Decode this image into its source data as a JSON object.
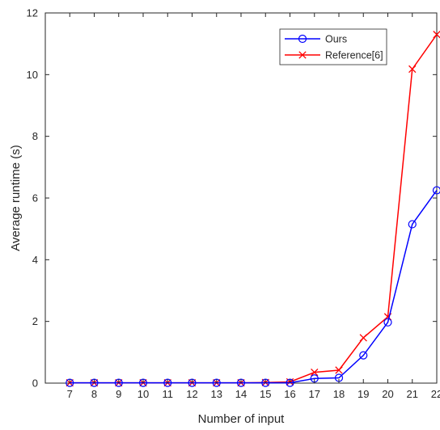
{
  "chart_data": {
    "type": "line",
    "xlabel": "Number of input",
    "ylabel": "Average runtime (s)",
    "x": [
      7,
      8,
      9,
      10,
      11,
      12,
      13,
      14,
      15,
      16,
      17,
      18,
      19,
      20,
      21,
      22
    ],
    "xlim": [
      6,
      22
    ],
    "ylim": [
      0,
      12
    ],
    "yticks": [
      0,
      2,
      4,
      6,
      8,
      10,
      12
    ],
    "grid": false,
    "legend_position": "top-right",
    "series": [
      {
        "name": "Ours",
        "color": "#0000ff",
        "marker": "circle",
        "values": [
          0.01,
          0.01,
          0.01,
          0.01,
          0.01,
          0.01,
          0.01,
          0.01,
          0.01,
          0.01,
          0.15,
          0.17,
          0.9,
          1.97,
          5.15,
          6.25
        ]
      },
      {
        "name": "Reference[6]",
        "color": "#ff0000",
        "marker": "x",
        "values": [
          0.01,
          0.01,
          0.01,
          0.01,
          0.01,
          0.01,
          0.01,
          0.01,
          0.02,
          0.04,
          0.35,
          0.42,
          1.47,
          2.15,
          10.18,
          11.3
        ]
      }
    ]
  }
}
